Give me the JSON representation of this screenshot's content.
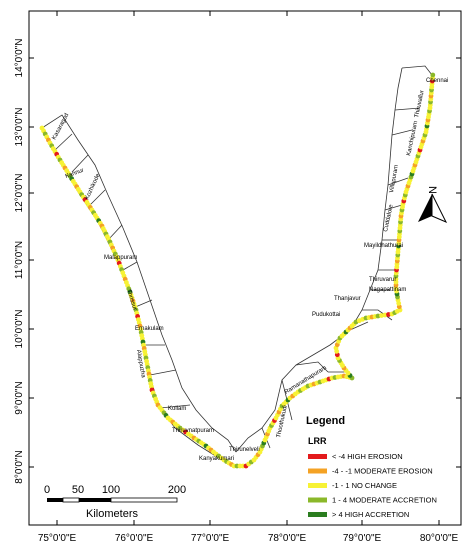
{
  "latitude_labels": [
    "14°0'0\"N",
    "13°0'0\"N",
    "12°0'0\"N",
    "11°0'0\"N",
    "10°0'0\"N",
    "9°0'0\"N",
    "8°0'0\"N"
  ],
  "longitude_labels": [
    "75°0'0\"E",
    "76°0'0\"E",
    "77°0'0\"E",
    "78°0'0\"E",
    "79°0'0\"E",
    "80°0'0\"E"
  ],
  "districts": [
    "Kasaragod",
    "Kannur",
    "Kozhikode",
    "Malappuram",
    "Thrissur",
    "Ernakulam",
    "Alappuzha",
    "Kollam",
    "Thiruvnatpuram",
    "Kanyakumari",
    "Thirunelveli",
    "Thoothukudi",
    "Ramanathapuram",
    "Pudukottai",
    "Thanjavur",
    "Thiruvarur",
    "Nagapattinam",
    "Mayildhathurai",
    "Cuddalore",
    "Villupuram",
    "Kanchipuram",
    "Thiruvallur",
    "Chennai"
  ],
  "legend": {
    "title": "Legend",
    "subtitle": "LRR",
    "items": [
      {
        "label": "< -4 HIGH EROSION",
        "color": "#e31a1c"
      },
      {
        "label": "-4 - -1 MODERATE EROSION",
        "color": "#f4a224"
      },
      {
        "label": "-1 - 1 NO CHANGE",
        "color": "#f7f235"
      },
      {
        "label": "1 - 4 MODERATE ACCRETION",
        "color": "#8bb82a"
      },
      {
        "label": "> 4 HIGH ACCRETION",
        "color": "#2b7d1f"
      }
    ]
  },
  "north_arrow": {
    "label": "N",
    "icon": "north-arrow-icon"
  },
  "scale_bar": {
    "ticks": [
      "0",
      "50",
      "100",
      "200"
    ],
    "unit": "Kilometers"
  }
}
